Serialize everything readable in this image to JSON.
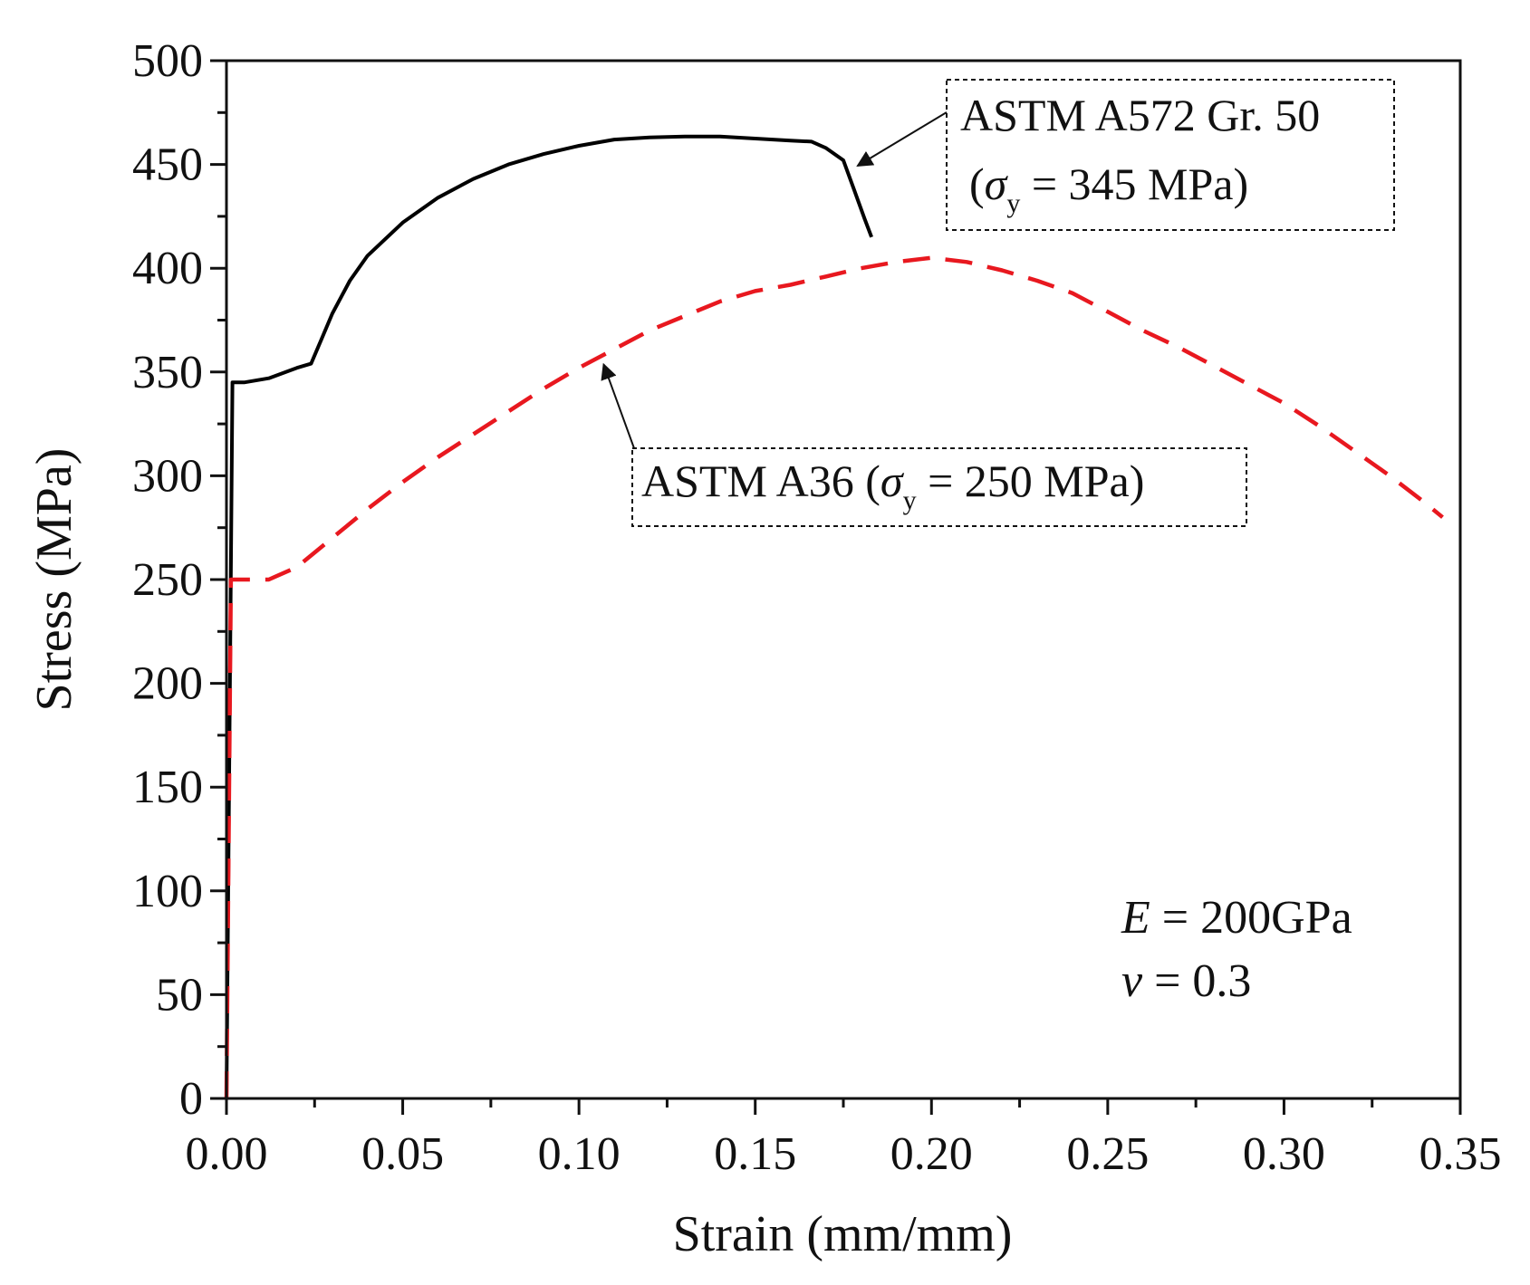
{
  "chart_data": {
    "type": "line",
    "title": "",
    "xlabel": "Strain (mm/mm)",
    "ylabel": "Stress (MPa)",
    "xlim": [
      0,
      0.35
    ],
    "ylim": [
      0,
      500
    ],
    "x_ticks": [
      0.0,
      0.05,
      0.1,
      0.15,
      0.2,
      0.25,
      0.3,
      0.35
    ],
    "x_tick_labels": [
      "0.00",
      "0.05",
      "0.10",
      "0.15",
      "0.20",
      "0.25",
      "0.30",
      "0.35"
    ],
    "y_ticks": [
      0,
      50,
      100,
      150,
      200,
      250,
      300,
      350,
      400,
      450,
      500
    ],
    "y_tick_labels": [
      "0",
      "50",
      "100",
      "150",
      "200",
      "250",
      "300",
      "350",
      "400",
      "450",
      "500"
    ],
    "x_minor_step": 0.025,
    "y_minor_step": 25,
    "grid": false,
    "series": [
      {
        "name": "ASTM A572 Gr. 50",
        "color": "#000000",
        "style": "solid",
        "x": [
          0,
          0.0017,
          0.002,
          0.003,
          0.005,
          0.012,
          0.02,
          0.024,
          0.027,
          0.03,
          0.035,
          0.04,
          0.05,
          0.06,
          0.07,
          0.08,
          0.09,
          0.1,
          0.11,
          0.12,
          0.13,
          0.14,
          0.15,
          0.16,
          0.166,
          0.17,
          0.175,
          0.178,
          0.181,
          0.183
        ],
        "y": [
          0,
          345,
          345,
          345,
          345,
          347,
          352,
          354,
          366,
          378,
          394,
          406,
          422,
          434,
          443,
          450,
          455,
          459,
          462,
          463,
          463.5,
          463.5,
          462.5,
          461.5,
          461,
          458,
          452,
          438,
          424,
          415
        ]
      },
      {
        "name": "ASTM A36",
        "color": "#e8181f",
        "style": "dashed",
        "x": [
          0,
          0.00125,
          0.003,
          0.008,
          0.012,
          0.02,
          0.03,
          0.04,
          0.05,
          0.06,
          0.07,
          0.08,
          0.09,
          0.1,
          0.11,
          0.12,
          0.13,
          0.14,
          0.15,
          0.16,
          0.17,
          0.18,
          0.19,
          0.2,
          0.21,
          0.22,
          0.23,
          0.24,
          0.25,
          0.26,
          0.27,
          0.28,
          0.29,
          0.3,
          0.31,
          0.32,
          0.33,
          0.34,
          0.345
        ],
        "y": [
          0,
          250,
          250,
          250,
          250,
          256,
          270,
          284,
          297,
          309,
          320,
          331,
          342,
          352,
          361,
          370,
          377,
          384,
          389,
          392,
          396,
          400,
          403,
          405,
          403,
          399,
          394,
          388,
          379,
          370,
          362,
          353,
          344,
          335,
          324,
          312,
          300,
          287,
          280
        ]
      }
    ],
    "annotations": [
      {
        "id": "a572",
        "line1": "ASTM A572 Gr. 50",
        "line2_prefix": "(",
        "sigma": "σ",
        "sub": "y",
        "line2_suffix": " = 345 MPa)",
        "arrow_target": {
          "x": 0.177,
          "y": 452
        }
      },
      {
        "id": "a36",
        "prefix": "ASTM A36 (",
        "sigma": "σ",
        "sub": "y",
        "suffix": " = 250 MPa)",
        "arrow_target": {
          "x": 0.107,
          "y": 358
        }
      }
    ],
    "params": {
      "E_symbol": "E",
      "E_rest": " = 200GPa",
      "nu_symbol": "v",
      "nu_rest": " = 0.3"
    }
  }
}
